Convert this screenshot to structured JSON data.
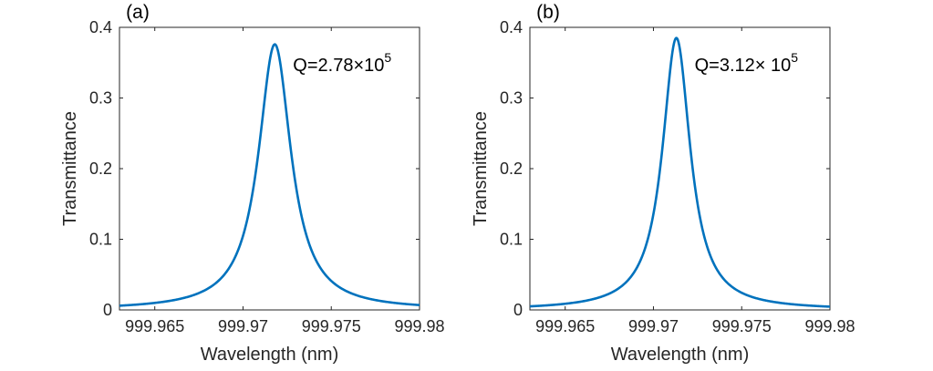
{
  "chart_data": [
    {
      "type": "line",
      "panel_label": "(a)",
      "xlabel": "Wavelength (nm)",
      "ylabel": "Transmittance",
      "xlim": [
        999.963,
        999.98
      ],
      "ylim": [
        0,
        0.4
      ],
      "x_ticks": [
        999.965,
        999.97,
        999.975,
        999.98
      ],
      "x_tick_labels": [
        "999.965",
        "999.97",
        "999.975",
        "999.98"
      ],
      "y_ticks": [
        0,
        0.1,
        0.2,
        0.3,
        0.4
      ],
      "y_tick_labels": [
        "0",
        "0.1",
        "0.2",
        "0.3",
        "0.4"
      ],
      "series": [
        {
          "name": "Transmittance",
          "color": "#0072BD",
          "peak_x": 999.9718,
          "peak_y": 0.376,
          "half_width": 0.00112
        }
      ],
      "annotation": {
        "base": "Q=2.78",
        "times": "×",
        "mantissa": "10",
        "exponent": "5"
      }
    },
    {
      "type": "line",
      "panel_label": "(b)",
      "xlabel": "Wavelength (nm)",
      "ylabel": "Transmittance",
      "xlim": [
        999.963,
        999.98
      ],
      "ylim": [
        0,
        0.4
      ],
      "x_ticks": [
        999.965,
        999.97,
        999.975,
        999.98
      ],
      "x_tick_labels": [
        "999.965",
        "999.97",
        "999.975",
        "999.98"
      ],
      "y_ticks": [
        0,
        0.1,
        0.2,
        0.3,
        0.4
      ],
      "y_tick_labels": [
        "0",
        "0.1",
        "0.2",
        "0.3",
        "0.4"
      ],
      "series": [
        {
          "name": "Transmittance",
          "color": "#0072BD",
          "peak_x": 999.9713,
          "peak_y": 0.385,
          "half_width": 0.00096
        }
      ],
      "annotation": {
        "base": "Q=3.12",
        "times": "× ",
        "mantissa": "10",
        "exponent": "5"
      }
    }
  ]
}
